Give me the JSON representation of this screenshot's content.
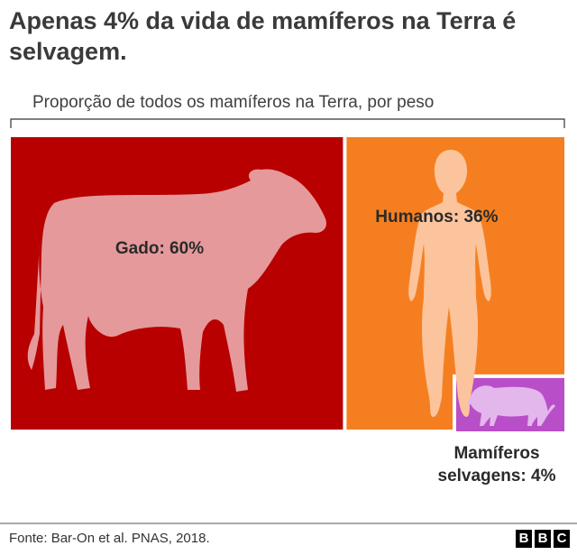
{
  "title": "Apenas 4% da vida de mamíferos na Terra é selvagem.",
  "source": "Fonte: Bar-On et al. PNAS, 2018.",
  "logo": [
    "B",
    "B",
    "C"
  ],
  "chart_data": {
    "type": "treemap",
    "subtitle": "Proporção de todos os mamíferos na Terra, por peso",
    "values": [
      60,
      36,
      4
    ],
    "value_labels": [
      "Gado: 60%",
      "Humanos: 36%",
      "Mamíferos selvagens: 4%"
    ],
    "colors": [
      "#b80000",
      "#f57f20",
      "#b94fc8"
    ]
  }
}
